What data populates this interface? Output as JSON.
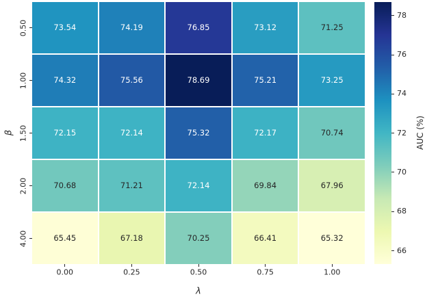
{
  "chart_data": {
    "type": "heatmap",
    "title": "",
    "xlabel": "λ",
    "ylabel": "β",
    "x_ticklabels": [
      "0.00",
      "0.25",
      "0.50",
      "0.75",
      "1.00"
    ],
    "y_ticklabels": [
      "0.50",
      "1.00",
      "1.50",
      "2.00",
      "4.00"
    ],
    "values": [
      [
        73.54,
        74.19,
        76.85,
        73.12,
        71.25
      ],
      [
        74.32,
        75.56,
        78.69,
        75.21,
        73.25
      ],
      [
        72.15,
        72.14,
        75.32,
        72.17,
        70.74
      ],
      [
        70.68,
        71.21,
        72.14,
        69.84,
        67.96
      ],
      [
        65.45,
        67.18,
        70.25,
        66.41,
        65.32
      ]
    ],
    "annotation_decimals": 2,
    "colormap": "YlGnBu",
    "grid_line_color": "#ffffff",
    "legend_position": "right-colorbar",
    "colorbar": {
      "label": "AUC (%)",
      "ticks": [
        66,
        68,
        70,
        72,
        74,
        76,
        78
      ],
      "vmin": 65.32,
      "vmax": 78.69
    },
    "annotation_colors": {
      "on_dark": "#ffffff",
      "on_light": "#262626"
    }
  }
}
